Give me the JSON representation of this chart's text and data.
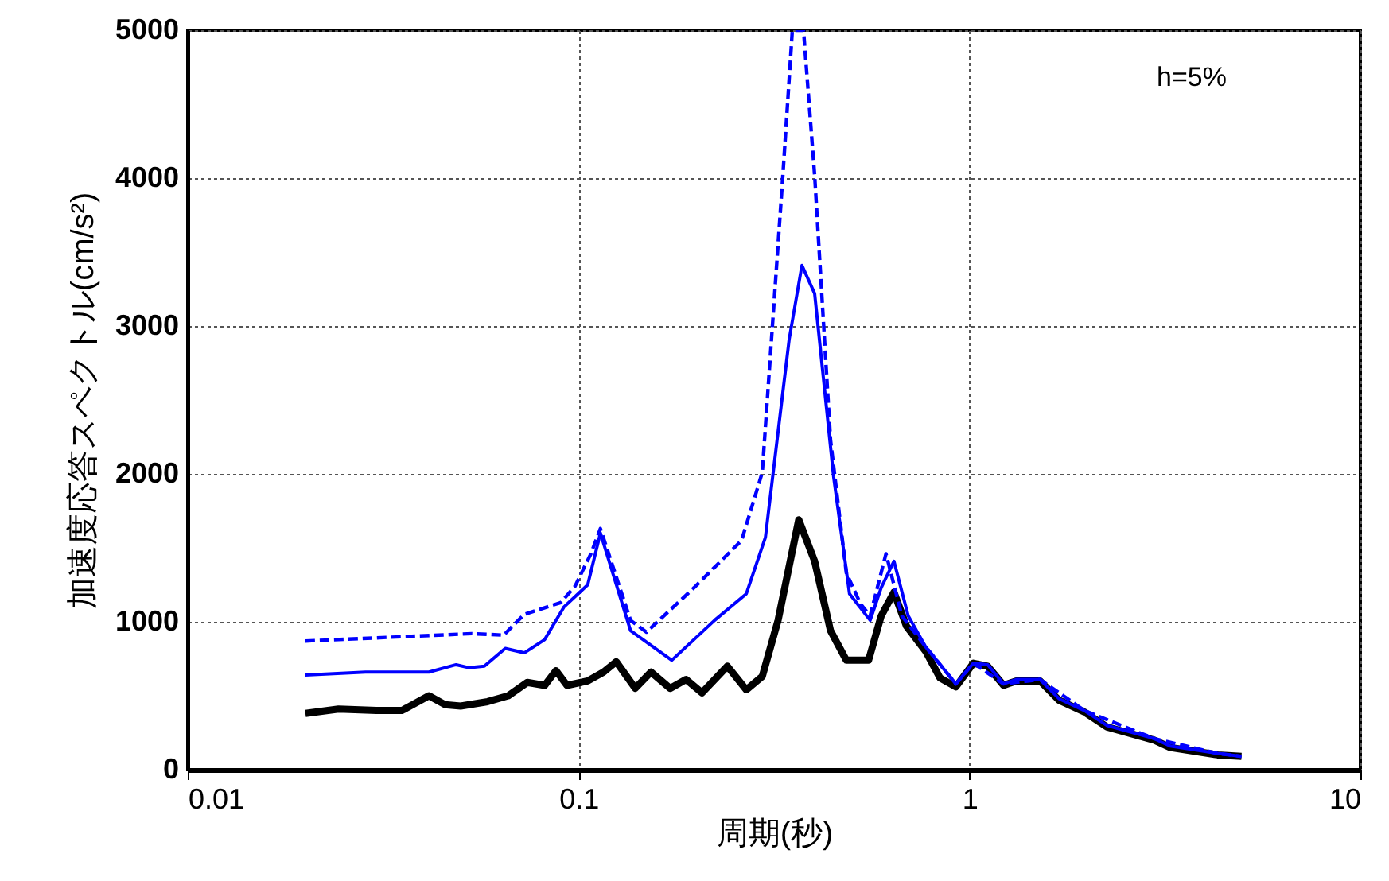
{
  "chart_data": {
    "type": "line",
    "xlabel": "周期(秒)",
    "ylabel": "加速度応答スペクトル(cm/s²)",
    "annotations": [
      "h=5%"
    ],
    "log": "x",
    "grid": true,
    "xlim": [
      0.01,
      10
    ],
    "xticks": [
      0.01,
      0.1,
      1,
      10
    ],
    "ylim": [
      0,
      5000
    ],
    "yticks": [
      0,
      1000,
      2000,
      3000,
      4000,
      5000
    ],
    "series": [
      {
        "color": "#0000ff",
        "line_style": "dashed",
        "x": [
          0.02,
          0.0533,
          0.0643,
          0.0726,
          0.09,
          0.0979,
          0.1075,
          0.1137,
          0.1358,
          0.1491,
          0.1973,
          0.2612,
          0.295,
          0.3331,
          0.3522,
          0.3761,
          0.4016,
          0.441,
          0.4841,
          0.5266,
          0.557,
          0.6115,
          0.6714,
          0.7727,
          0.9229,
          1.023,
          1.222,
          1.515,
          1.968,
          2.97,
          4.315,
          4.965
        ],
        "values": [
          870,
          920,
          910,
          1050,
          1130,
          1240,
          1460,
          1630,
          1010,
          930,
          1230,
          1550,
          2010,
          4020,
          5000,
          5000,
          4020,
          2230,
          1330,
          1120,
          1040,
          1460,
          1040,
          830,
          580,
          720,
          580,
          610,
          400,
          210,
          110,
          90
        ]
      },
      {
        "color": "#0000ff",
        "line_style": "solid",
        "x": [
          0.02,
          0.0285,
          0.0414,
          0.0486,
          0.0523,
          0.0574,
          0.0649,
          0.0726,
          0.0819,
          0.0917,
          0.1055,
          0.1137,
          0.1358,
          0.1731,
          0.2228,
          0.2686,
          0.3005,
          0.3457,
          0.3727,
          0.4016,
          0.4492,
          0.4932,
          0.557,
          0.5945,
          0.6408,
          0.697,
          0.7727,
          0.9229,
          1.023,
          1.113,
          1.222,
          1.317,
          1.515,
          1.694,
          1.968,
          2.243,
          2.97,
          3.261,
          4.315,
          4.965
        ],
        "values": [
          640,
          660,
          660,
          710,
          690,
          700,
          820,
          790,
          880,
          1100,
          1250,
          1600,
          940,
          740,
          1010,
          1190,
          1570,
          2910,
          3410,
          3220,
          1980,
          1190,
          1010,
          1230,
          1410,
          1040,
          830,
          580,
          720,
          710,
          580,
          610,
          610,
          480,
          400,
          300,
          210,
          160,
          110,
          90
        ]
      },
      {
        "color": "#000000",
        "line_style": "solid",
        "x": [
          0.02,
          0.0243,
          0.0304,
          0.0353,
          0.0414,
          0.0455,
          0.0499,
          0.0585,
          0.0661,
          0.0739,
          0.0819,
          0.0875,
          0.0934,
          0.1055,
          0.1158,
          0.1248,
          0.1396,
          0.1532,
          0.1715,
          0.1883,
          0.2068,
          0.2401,
          0.2686,
          0.295,
          0.3238,
          0.3657,
          0.4016,
          0.441,
          0.4841,
          0.5519,
          0.5945,
          0.6408,
          0.69,
          0.7727,
          0.8405,
          0.9229,
          1.023,
          1.113,
          1.222,
          1.317,
          1.515,
          1.694,
          1.968,
          2.243,
          2.97,
          3.261,
          4.315,
          4.965
        ],
        "values": [
          380,
          410,
          400,
          400,
          500,
          440,
          430,
          460,
          500,
          590,
          570,
          670,
          570,
          600,
          660,
          730,
          550,
          660,
          550,
          610,
          520,
          700,
          540,
          630,
          1010,
          1690,
          1410,
          940,
          740,
          740,
          1040,
          1200,
          970,
          800,
          620,
          560,
          720,
          700,
          570,
          600,
          600,
          470,
          390,
          290,
          200,
          150,
          100,
          90
        ]
      }
    ]
  }
}
